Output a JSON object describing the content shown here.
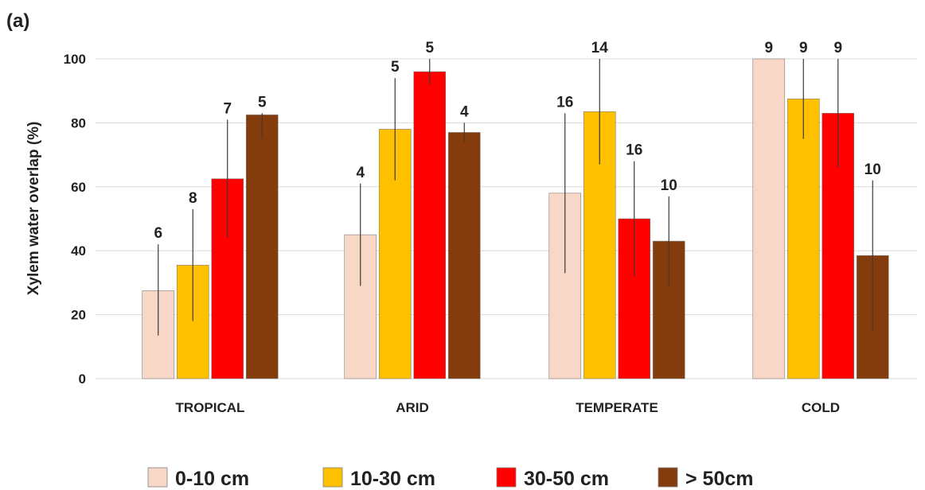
{
  "panel_label": "(a)",
  "chart_data": {
    "type": "bar",
    "title": "",
    "xlabel": "",
    "ylabel": "Xylem water overlap (%)",
    "ylim": [
      0,
      100
    ],
    "yticks": [
      0,
      20,
      40,
      60,
      80,
      100
    ],
    "grid": true,
    "legend_position": "bottom",
    "categories": [
      "TROPICAL",
      "ARID",
      "TEMPERATE",
      "COLD"
    ],
    "series": [
      {
        "name": "0-10 cm",
        "color": "#f8d7c6",
        "values": [
          27.5,
          45,
          58,
          100
        ],
        "err_low": [
          13.5,
          29,
          33,
          100
        ],
        "err_high": [
          42,
          61,
          83,
          100
        ],
        "labels": [
          "6",
          "4",
          "16",
          "9"
        ]
      },
      {
        "name": "10-30 cm",
        "color": "#ffc000",
        "values": [
          35.5,
          78,
          83.5,
          87.5
        ],
        "err_low": [
          18,
          62,
          67,
          75
        ],
        "err_high": [
          53,
          94,
          100,
          100
        ],
        "labels": [
          "8",
          "5",
          "14",
          "9"
        ]
      },
      {
        "name": "30-50 cm",
        "color": "#ff0000",
        "values": [
          62.5,
          96,
          50,
          83
        ],
        "err_low": [
          44,
          92,
          32,
          66
        ],
        "err_high": [
          81,
          100,
          68,
          100
        ],
        "labels": [
          "7",
          "5",
          "16",
          "9"
        ]
      },
      {
        "name": "> 50cm",
        "color": "#843c0c",
        "values": [
          82.5,
          77,
          43,
          38.5
        ],
        "err_low": [
          75,
          74,
          29,
          15
        ],
        "err_high": [
          83,
          80,
          57,
          62
        ],
        "labels": [
          "5",
          "4",
          "10",
          "10"
        ]
      }
    ]
  }
}
